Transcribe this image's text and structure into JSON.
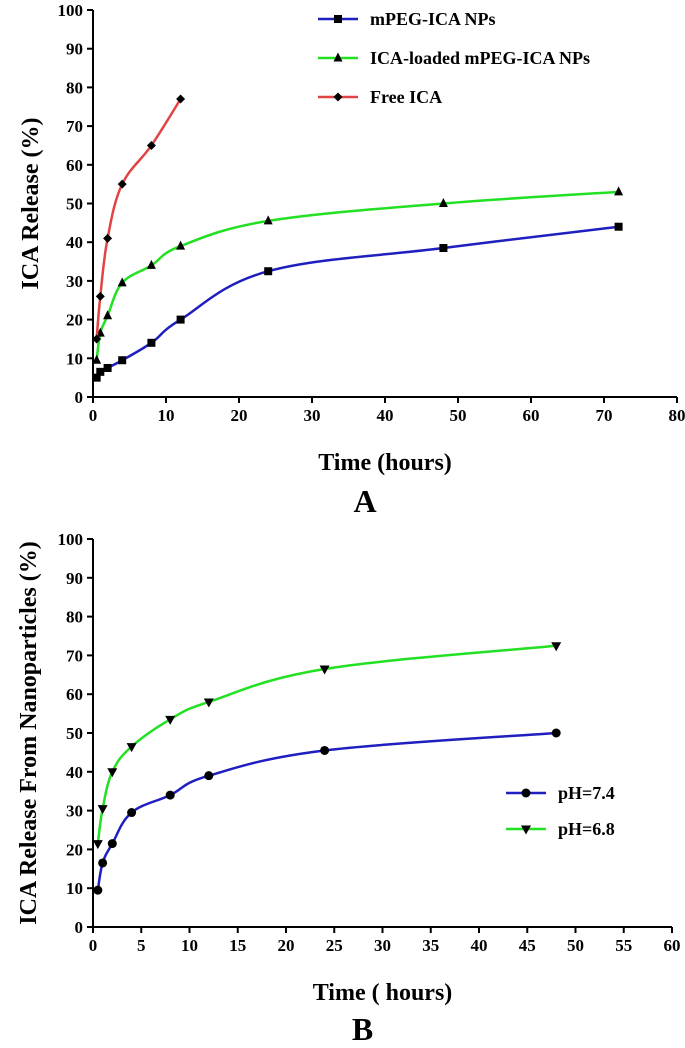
{
  "chart_data": [
    {
      "type": "line",
      "panel_label": "A",
      "xlabel": "Time (hours)",
      "ylabel": "ICA Release (%)",
      "xlim": [
        0,
        80
      ],
      "ylim": [
        0,
        100
      ],
      "xticks": [
        0,
        10,
        20,
        30,
        40,
        50,
        60,
        70,
        80
      ],
      "yticks": [
        0,
        10,
        20,
        30,
        40,
        50,
        60,
        70,
        80,
        90,
        100
      ],
      "grid": false,
      "legend_position": "top-right",
      "series": [
        {
          "name": "mPEG-ICA NPs",
          "color": "#1f1fbf",
          "marker": "square",
          "x": [
            0.5,
            1,
            2,
            4,
            8,
            12,
            24,
            48,
            72
          ],
          "y": [
            5,
            6.5,
            7.5,
            9.5,
            14,
            20,
            32.5,
            38.5,
            44
          ]
        },
        {
          "name": "ICA-loaded mPEG-ICA NPs",
          "color": "#22e022",
          "marker": "triangle-up",
          "x": [
            0.5,
            1,
            2,
            4,
            8,
            12,
            24,
            48,
            72
          ],
          "y": [
            9.5,
            16.5,
            21,
            29.5,
            34,
            39,
            45.5,
            50,
            53
          ]
        },
        {
          "name": "Free ICA",
          "color": "#e04444",
          "marker": "diamond",
          "x": [
            0.5,
            1,
            2,
            4,
            8,
            12
          ],
          "y": [
            15,
            26,
            41,
            55,
            65,
            77
          ]
        }
      ]
    },
    {
      "type": "line",
      "panel_label": "B",
      "xlabel": "Time ( hours)",
      "ylabel": "ICA Release From Nanoparticles (%)",
      "xlim": [
        0,
        60
      ],
      "ylim": [
        0,
        100
      ],
      "xticks": [
        0,
        5,
        10,
        15,
        20,
        25,
        30,
        35,
        40,
        45,
        50,
        55,
        60
      ],
      "yticks": [
        0,
        10,
        20,
        30,
        40,
        50,
        60,
        70,
        80,
        90,
        100
      ],
      "grid": false,
      "legend_position": "right",
      "series": [
        {
          "name": "pH=7.4",
          "color": "#1f1fbf",
          "marker": "circle",
          "x": [
            0.5,
            1,
            2,
            4,
            8,
            12,
            24,
            48
          ],
          "y": [
            9.5,
            16.5,
            21.5,
            29.5,
            34,
            39,
            45.5,
            50
          ]
        },
        {
          "name": "pH=6.8",
          "color": "#22e022",
          "marker": "triangle-down",
          "x": [
            0.5,
            1,
            2,
            4,
            8,
            12,
            24,
            48
          ],
          "y": [
            21.5,
            30.5,
            40,
            46.5,
            53.5,
            58,
            66.5,
            72.5
          ]
        }
      ]
    }
  ]
}
